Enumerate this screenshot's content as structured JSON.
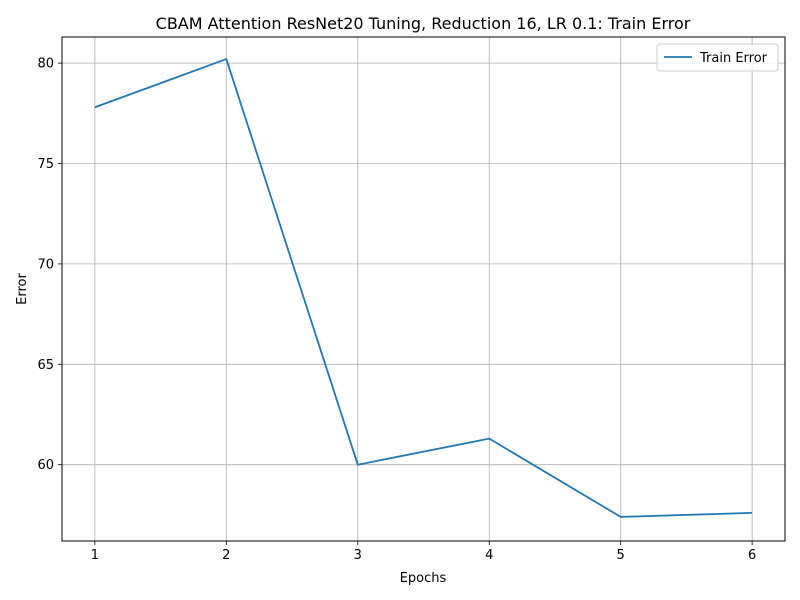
{
  "chart_data": {
    "type": "line",
    "title": "CBAM Attention ResNet20 Tuning, Reduction 16, LR 0.1: Train Error",
    "xlabel": "Epochs",
    "ylabel": "Error",
    "x": [
      1,
      2,
      3,
      4,
      5,
      6
    ],
    "xticks": [
      "1",
      "2",
      "3",
      "4",
      "5",
      "6"
    ],
    "yticks": [
      "60",
      "65",
      "70",
      "75",
      "80"
    ],
    "xlim": [
      0.75,
      6.25
    ],
    "ylim": [
      56.2,
      81.3
    ],
    "grid": true,
    "legend_position": "top-right",
    "series": [
      {
        "name": "Train Error",
        "color": "#1f77b4",
        "values": [
          77.8,
          80.2,
          60.0,
          61.3,
          57.4,
          57.6
        ]
      }
    ]
  }
}
